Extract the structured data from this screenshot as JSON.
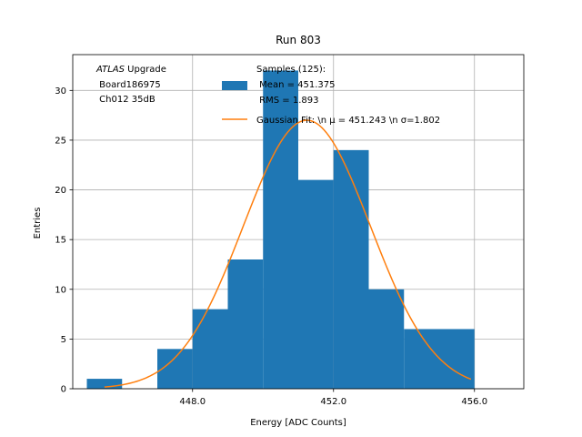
{
  "chart_data": {
    "type": "bar",
    "title": "Run 803",
    "xlabel": "Energy [ADC Counts]",
    "ylabel": "Entries",
    "xlim": [
      444.6,
      457.4
    ],
    "ylim": [
      0,
      33.6
    ],
    "xticks": [
      448.0,
      452.0,
      456.0
    ],
    "xtick_labels": [
      "448.0",
      "452.0",
      "456.0"
    ],
    "yticks": [
      0,
      5,
      10,
      15,
      20,
      25,
      30
    ],
    "ytick_labels": [
      "0",
      "5",
      "10",
      "15",
      "20",
      "25",
      "30"
    ],
    "grid": true,
    "legend_placement": "top-right",
    "histogram": {
      "name": "Samples (125):\n Mean = 451.375\n RMS = 1.893",
      "color": "#1f77b4",
      "bins": [
        {
          "x0": 445.0,
          "x1": 446.0,
          "value": 1
        },
        {
          "x0": 446.0,
          "x1": 447.0,
          "value": 0
        },
        {
          "x0": 447.0,
          "x1": 448.0,
          "value": 4
        },
        {
          "x0": 448.0,
          "x1": 449.0,
          "value": 8
        },
        {
          "x0": 449.0,
          "x1": 450.0,
          "value": 13
        },
        {
          "x0": 450.0,
          "x1": 451.0,
          "value": 32
        },
        {
          "x0": 451.0,
          "x1": 452.0,
          "value": 21
        },
        {
          "x0": 452.0,
          "x1": 453.0,
          "value": 24
        },
        {
          "x0": 453.0,
          "x1": 454.0,
          "value": 10
        },
        {
          "x0": 454.0,
          "x1": 455.0,
          "value": 6
        },
        {
          "x0": 455.0,
          "x1": 456.0,
          "value": 6
        }
      ]
    },
    "fit": {
      "name": "Gaussian Fit: \\n $\\mu$ = 451.243 \\n $\\sigma$=1.802",
      "legend_label": "Gaussian Fit: \\n μ = 451.243 \\n σ=1.802",
      "color": "#ff7f0e",
      "mu": 451.243,
      "sigma": 1.802,
      "amplitude": 27.0,
      "x_range": [
        445.5,
        455.9
      ]
    },
    "legend": {
      "hist_lines": [
        "Samples (125):",
        " Mean = 451.375",
        " RMS = 1.893"
      ],
      "fit_label": "Gaussian Fit: \\n μ = 451.243 \\n σ=1.802"
    },
    "annotation": {
      "atlas_italic": "ATLAS",
      "atlas_rest": " Upgrade",
      "line2": " Board186975",
      "line3": " Ch012 35dB"
    }
  }
}
